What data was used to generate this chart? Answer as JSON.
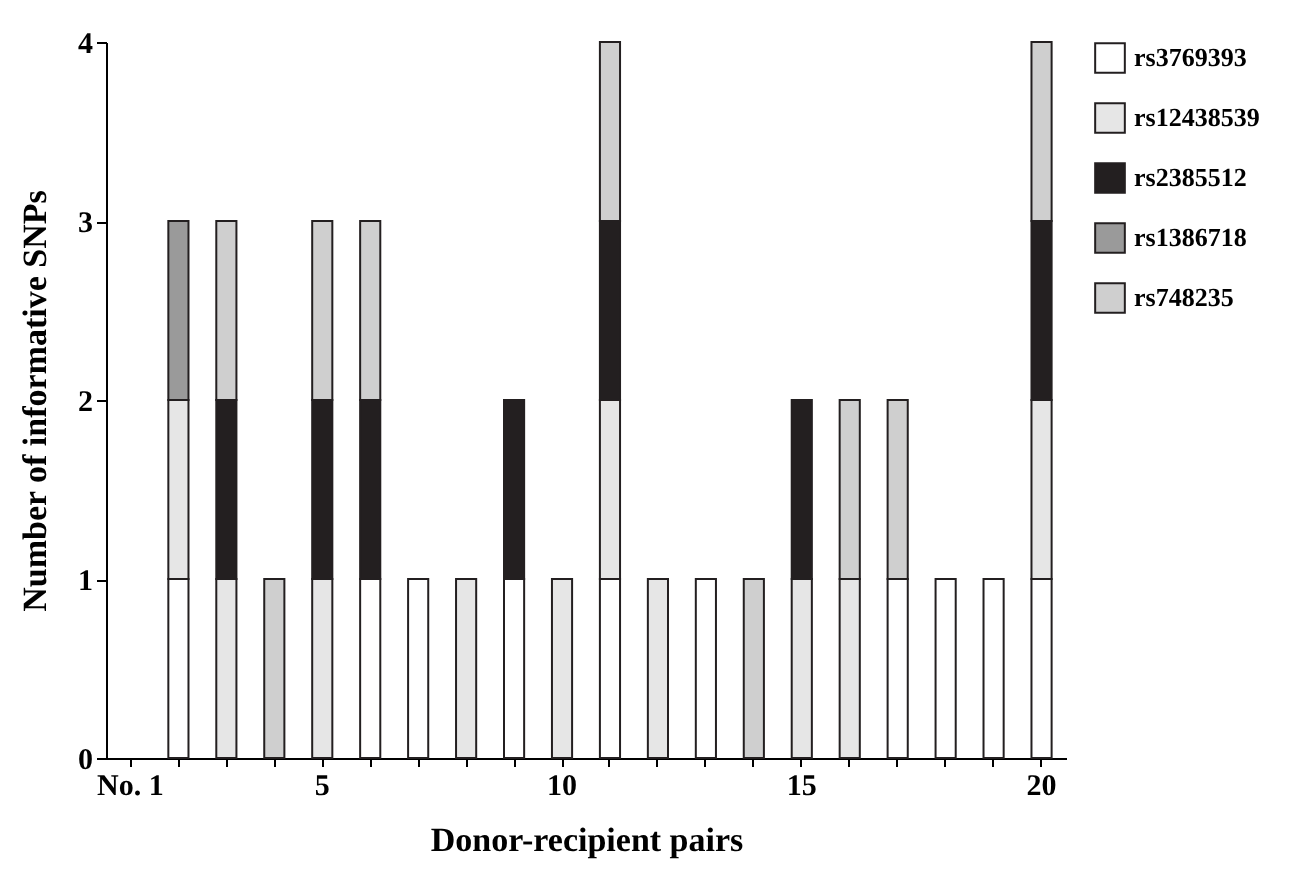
{
  "chart_data": {
    "type": "bar",
    "stacked": true,
    "xlabel": "Donor-recipient pairs",
    "ylabel": "Number of informative SNPs",
    "categories": [
      "No. 1",
      null,
      null,
      null,
      "5",
      null,
      null,
      null,
      null,
      "10",
      null,
      null,
      null,
      null,
      "15",
      null,
      null,
      null,
      null,
      "20"
    ],
    "ylim": [
      0,
      4
    ],
    "yticks": [
      0,
      1,
      2,
      3,
      4
    ],
    "grid": false,
    "legend": "right",
    "series": [
      {
        "name": "rs3769393",
        "color": "#ffffff",
        "values": [
          null,
          1,
          null,
          null,
          null,
          1,
          1,
          null,
          1,
          null,
          1,
          null,
          1,
          null,
          null,
          null,
          1,
          1,
          1,
          1
        ]
      },
      {
        "name": "rs12438539",
        "color": "#e6e6e6",
        "values": [
          null,
          1,
          1,
          null,
          1,
          null,
          null,
          1,
          null,
          1,
          1,
          1,
          null,
          null,
          1,
          1,
          null,
          null,
          null,
          1
        ]
      },
      {
        "name": "rs2385512",
        "color": "#231f20",
        "values": [
          null,
          null,
          1,
          null,
          1,
          1,
          null,
          null,
          1,
          null,
          1,
          null,
          null,
          null,
          1,
          null,
          null,
          null,
          null,
          1
        ]
      },
      {
        "name": "rs1386718",
        "color": "#9a9a9a",
        "values": [
          null,
          1,
          null,
          null,
          null,
          null,
          null,
          null,
          null,
          null,
          null,
          null,
          null,
          null,
          null,
          null,
          null,
          null,
          null,
          null
        ]
      },
      {
        "name": "rs748235",
        "color": "#cfcfcf",
        "values": [
          null,
          null,
          1,
          1,
          1,
          1,
          null,
          null,
          null,
          null,
          1,
          null,
          null,
          1,
          null,
          1,
          1,
          null,
          null,
          1
        ]
      }
    ]
  }
}
